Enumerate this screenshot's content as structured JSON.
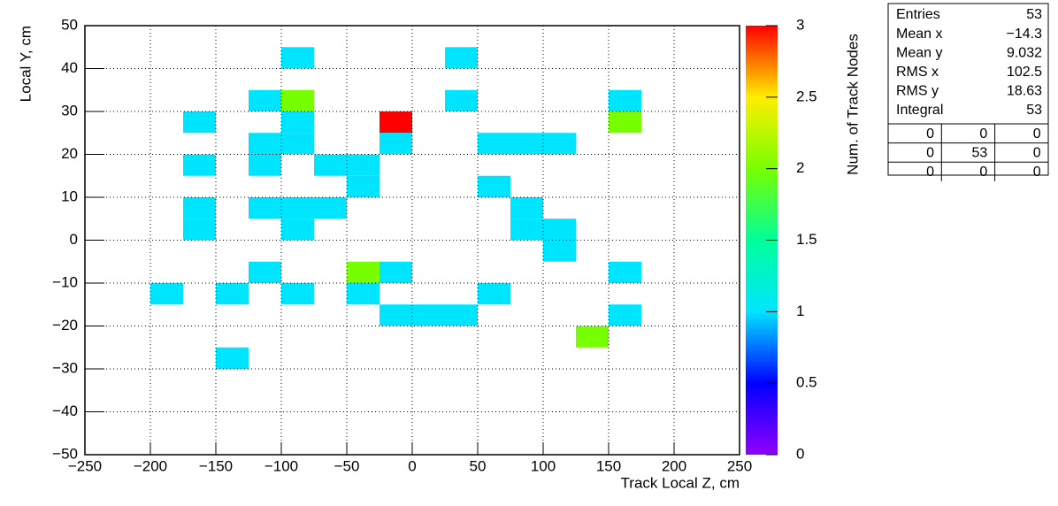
{
  "chart_data": {
    "type": "heatmap",
    "x_label": "Track Local Z, cm",
    "y_label": "Local Y, cm",
    "z_label": "Num. of Track Nodes",
    "xlim": [
      -250,
      250
    ],
    "ylim": [
      -50,
      50
    ],
    "zlim": [
      0,
      3
    ],
    "xticks": [
      {
        "value": -250,
        "label": "−250"
      },
      {
        "value": -200,
        "label": "−200"
      },
      {
        "value": -150,
        "label": "−150"
      },
      {
        "value": -100,
        "label": "−100"
      },
      {
        "value": -50,
        "label": "−50"
      },
      0,
      50,
      100,
      150,
      200,
      250
    ],
    "yticks": [
      {
        "value": -50,
        "label": "−50"
      },
      {
        "value": -40,
        "label": "−40"
      },
      {
        "value": -30,
        "label": "−30"
      },
      {
        "value": -20,
        "label": "−20"
      },
      {
        "value": -10,
        "label": "−10"
      },
      0,
      10,
      20,
      30,
      40,
      50
    ],
    "zticks": [
      0,
      0.5,
      1,
      1.5,
      2,
      2.5,
      3
    ],
    "grid": true,
    "colormap": [
      "#9000ff",
      "#0000ff",
      "#00e5ff",
      "#00ff99",
      "#77ff00",
      "#ffee00",
      "#ff0000"
    ],
    "cells": [
      {
        "x": [
          -100,
          -75
        ],
        "y": [
          40,
          45
        ],
        "value": 1
      },
      {
        "x": [
          25,
          50
        ],
        "y": [
          40,
          45
        ],
        "value": 1
      },
      {
        "x": [
          -125,
          -100
        ],
        "y": [
          30,
          35
        ],
        "value": 1
      },
      {
        "x": [
          -100,
          -75
        ],
        "y": [
          30,
          35
        ],
        "value": 2
      },
      {
        "x": [
          25,
          50
        ],
        "y": [
          30,
          35
        ],
        "value": 1
      },
      {
        "x": [
          150,
          175
        ],
        "y": [
          30,
          35
        ],
        "value": 1
      },
      {
        "x": [
          -175,
          -150
        ],
        "y": [
          25,
          30
        ],
        "value": 1
      },
      {
        "x": [
          -100,
          -75
        ],
        "y": [
          25,
          30
        ],
        "value": 1
      },
      {
        "x": [
          -25,
          0
        ],
        "y": [
          25,
          30
        ],
        "value": 3
      },
      {
        "x": [
          150,
          175
        ],
        "y": [
          25,
          30
        ],
        "value": 2
      },
      {
        "x": [
          -125,
          -100
        ],
        "y": [
          20,
          25
        ],
        "value": 1
      },
      {
        "x": [
          -100,
          -75
        ],
        "y": [
          20,
          25
        ],
        "value": 1
      },
      {
        "x": [
          -25,
          0
        ],
        "y": [
          20,
          25
        ],
        "value": 1
      },
      {
        "x": [
          50,
          75
        ],
        "y": [
          20,
          25
        ],
        "value": 1
      },
      {
        "x": [
          75,
          100
        ],
        "y": [
          20,
          25
        ],
        "value": 1
      },
      {
        "x": [
          100,
          125
        ],
        "y": [
          20,
          25
        ],
        "value": 1
      },
      {
        "x": [
          -175,
          -150
        ],
        "y": [
          15,
          20
        ],
        "value": 1
      },
      {
        "x": [
          -125,
          -100
        ],
        "y": [
          15,
          20
        ],
        "value": 1
      },
      {
        "x": [
          -75,
          -50
        ],
        "y": [
          15,
          20
        ],
        "value": 1
      },
      {
        "x": [
          -50,
          -25
        ],
        "y": [
          15,
          20
        ],
        "value": 1
      },
      {
        "x": [
          -50,
          -25
        ],
        "y": [
          10,
          15
        ],
        "value": 1
      },
      {
        "x": [
          50,
          75
        ],
        "y": [
          10,
          15
        ],
        "value": 1
      },
      {
        "x": [
          -175,
          -150
        ],
        "y": [
          5,
          10
        ],
        "value": 1
      },
      {
        "x": [
          -125,
          -100
        ],
        "y": [
          5,
          10
        ],
        "value": 1
      },
      {
        "x": [
          -100,
          -75
        ],
        "y": [
          5,
          10
        ],
        "value": 1
      },
      {
        "x": [
          -75,
          -50
        ],
        "y": [
          5,
          10
        ],
        "value": 1
      },
      {
        "x": [
          75,
          100
        ],
        "y": [
          5,
          10
        ],
        "value": 1
      },
      {
        "x": [
          -175,
          -150
        ],
        "y": [
          0,
          5
        ],
        "value": 1
      },
      {
        "x": [
          -100,
          -75
        ],
        "y": [
          0,
          5
        ],
        "value": 1
      },
      {
        "x": [
          75,
          100
        ],
        "y": [
          0,
          5
        ],
        "value": 1
      },
      {
        "x": [
          100,
          125
        ],
        "y": [
          0,
          5
        ],
        "value": 1
      },
      {
        "x": [
          100,
          125
        ],
        "y": [
          -5,
          0
        ],
        "value": 1
      },
      {
        "x": [
          -125,
          -100
        ],
        "y": [
          -10,
          -5
        ],
        "value": 1
      },
      {
        "x": [
          -50,
          -25
        ],
        "y": [
          -10,
          -5
        ],
        "value": 2
      },
      {
        "x": [
          -25,
          0
        ],
        "y": [
          -10,
          -5
        ],
        "value": 1
      },
      {
        "x": [
          150,
          175
        ],
        "y": [
          -10,
          -5
        ],
        "value": 1
      },
      {
        "x": [
          -200,
          -175
        ],
        "y": [
          -15,
          -10
        ],
        "value": 1
      },
      {
        "x": [
          -150,
          -125
        ],
        "y": [
          -15,
          -10
        ],
        "value": 1
      },
      {
        "x": [
          -100,
          -75
        ],
        "y": [
          -15,
          -10
        ],
        "value": 1
      },
      {
        "x": [
          -50,
          -25
        ],
        "y": [
          -15,
          -10
        ],
        "value": 1
      },
      {
        "x": [
          50,
          75
        ],
        "y": [
          -15,
          -10
        ],
        "value": 1
      },
      {
        "x": [
          -25,
          0
        ],
        "y": [
          -20,
          -15
        ],
        "value": 1
      },
      {
        "x": [
          0,
          25
        ],
        "y": [
          -20,
          -15
        ],
        "value": 1
      },
      {
        "x": [
          25,
          50
        ],
        "y": [
          -20,
          -15
        ],
        "value": 1
      },
      {
        "x": [
          150,
          175
        ],
        "y": [
          -20,
          -15
        ],
        "value": 1
      },
      {
        "x": [
          125,
          150
        ],
        "y": [
          -25,
          -20
        ],
        "value": 2
      },
      {
        "x": [
          -150,
          -125
        ],
        "y": [
          -30,
          -25
        ],
        "value": 1
      }
    ],
    "stats": {
      "rows": [
        {
          "name": "Entries",
          "value": 53
        },
        {
          "name": "Mean x",
          "value": "−14.3"
        },
        {
          "name": "Mean y",
          "value": 9.032
        },
        {
          "name": "RMS x",
          "value": 102.5
        },
        {
          "name": "RMS y",
          "value": 18.63
        },
        {
          "name": "Integral",
          "value": 53
        }
      ],
      "grid": [
        [
          0,
          0,
          0
        ],
        [
          0,
          53,
          0
        ],
        [
          0,
          0,
          0
        ]
      ]
    }
  }
}
